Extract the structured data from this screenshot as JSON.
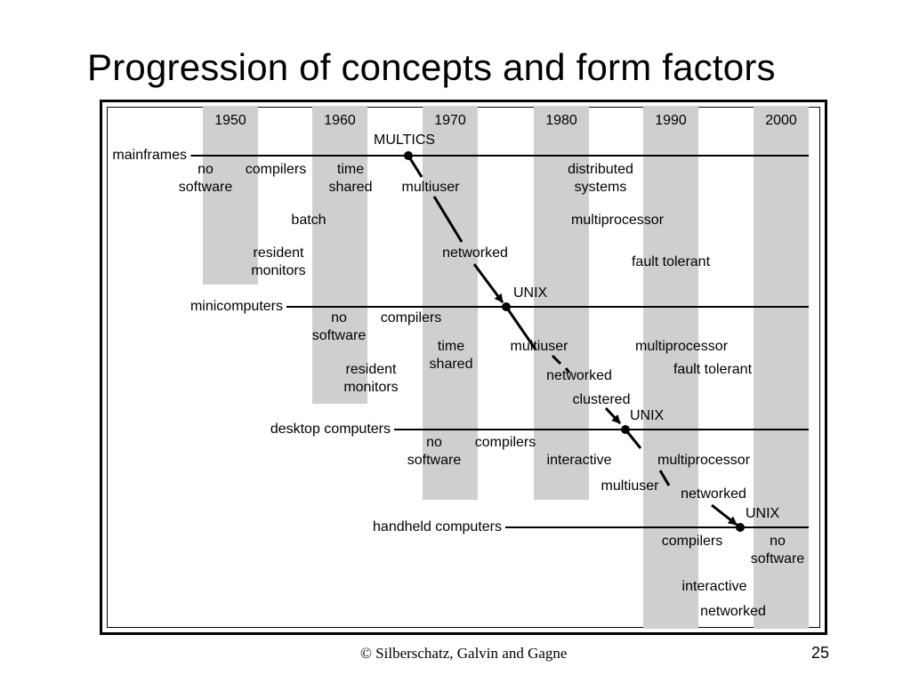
{
  "title": "Progression of concepts and form factors",
  "footer": {
    "credit": "© Silberschatz, Galvin and Gagne",
    "page_number": "25"
  },
  "years": [
    "1950",
    "1960",
    "1970",
    "1980",
    "1990",
    "2000"
  ],
  "rows": {
    "mainframes": {
      "label": "mainframes",
      "marker": "MULTICS",
      "concepts": {
        "no_software": "no\nsoftware",
        "compilers": "compilers",
        "time_shared": "time\nshared",
        "batch": "batch",
        "resident_monitors": "resident\nmonitors",
        "multiuser": "multiuser",
        "networked": "networked",
        "distributed_systems": "distributed\nsystems",
        "multiprocessor": "multiprocessor",
        "fault_tolerant": "fault tolerant"
      }
    },
    "minicomputers": {
      "label": "minicomputers",
      "marker": "UNIX",
      "concepts": {
        "no_software": "no\nsoftware",
        "compilers": "compilers",
        "resident_monitors": "resident\nmonitors",
        "time_shared": "time\nshared",
        "multiuser": "multiuser",
        "networked": "networked",
        "clustered": "clustered",
        "multiprocessor": "multiprocessor",
        "fault_tolerant": "fault tolerant"
      }
    },
    "desktop": {
      "label": "desktop computers",
      "marker": "UNIX",
      "concepts": {
        "no_software": "no\nsoftware",
        "compilers": "compilers",
        "interactive": "interactive",
        "multiprocessor": "multiprocessor",
        "multiuser": "multiuser",
        "networked": "networked"
      }
    },
    "handheld": {
      "label": "handheld computers",
      "marker": "UNIX",
      "concepts": {
        "compilers": "compilers",
        "no_software": "no\nsoftware",
        "interactive": "interactive",
        "networked": "networked"
      }
    }
  }
}
